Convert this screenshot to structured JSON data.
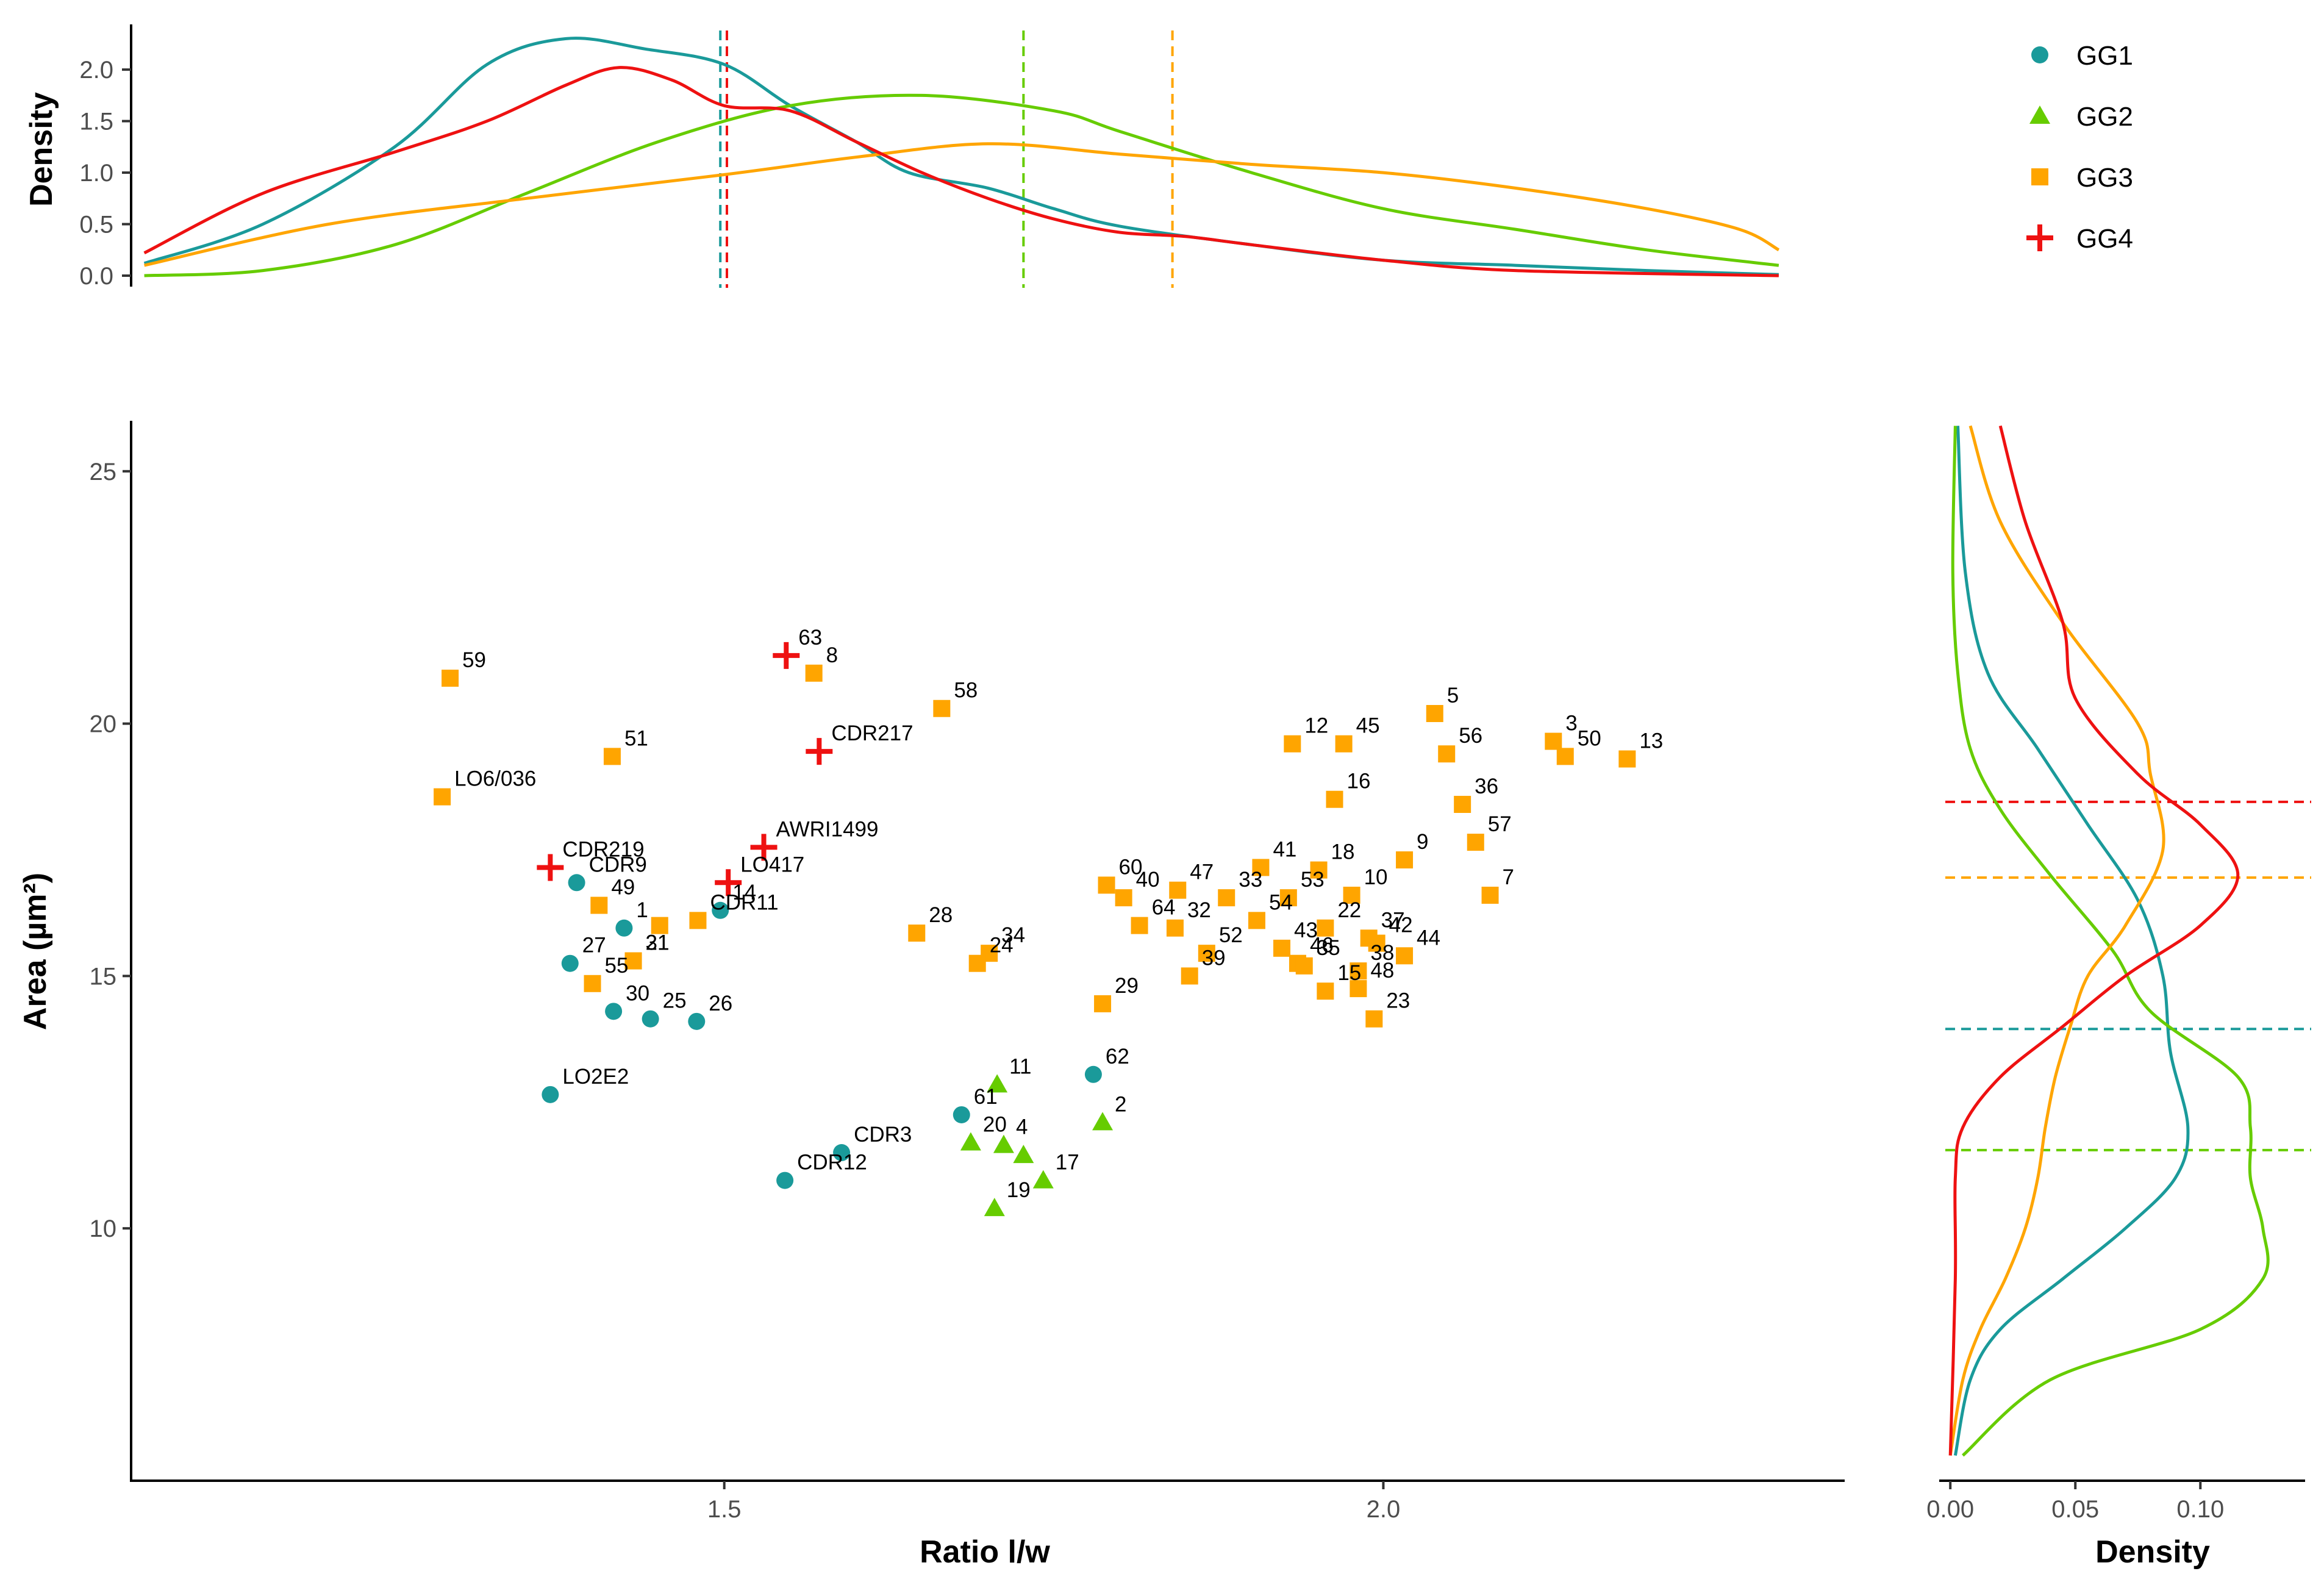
{
  "chart_data": {
    "type": "scatter",
    "title": "",
    "xlabel": "Ratio l/w",
    "ylabel": "Area (µm²)",
    "xlim": [
      1.05,
      2.35
    ],
    "ylim": [
      5,
      26
    ],
    "xticks": [
      "1.5",
      "2.0"
    ],
    "yticks": [
      "10",
      "15",
      "20",
      "25"
    ],
    "legend": {
      "position": "top-right",
      "entries": [
        {
          "group": "GG1",
          "label": "GG1",
          "color": "#1a9a9a",
          "shape": "circle"
        },
        {
          "group": "GG2",
          "label": "GG2",
          "color": "#66cc00",
          "shape": "triangle"
        },
        {
          "group": "GG3",
          "label": "GG3",
          "color": "#ffa500",
          "shape": "square"
        },
        {
          "group": "GG4",
          "label": "GG4",
          "color": "#ee1111",
          "shape": "cross"
        }
      ]
    },
    "series": [
      {
        "name": "GG1",
        "color": "#1a9a9a",
        "shape": "circle",
        "points": [
          {
            "label": "CDR9",
            "x": 1.388,
            "y": 16.85
          },
          {
            "label": "27",
            "x": 1.383,
            "y": 15.25
          },
          {
            "label": "1",
            "x": 1.424,
            "y": 15.95
          },
          {
            "label": "14",
            "x": 1.497,
            "y": 16.3
          },
          {
            "label": "30",
            "x": 1.416,
            "y": 14.3
          },
          {
            "label": "25",
            "x": 1.444,
            "y": 14.15
          },
          {
            "label": "26",
            "x": 1.479,
            "y": 14.1
          },
          {
            "label": "LO2E2",
            "x": 1.368,
            "y": 12.65
          },
          {
            "label": "CDR12",
            "x": 1.546,
            "y": 10.95
          },
          {
            "label": "CDR3",
            "x": 1.589,
            "y": 11.5
          },
          {
            "label": "61",
            "x": 1.68,
            "y": 12.25
          },
          {
            "label": "62",
            "x": 1.78,
            "y": 13.05
          }
        ]
      },
      {
        "name": "GG2",
        "color": "#66cc00",
        "shape": "triangle",
        "points": [
          {
            "label": "11",
            "x": 1.707,
            "y": 12.85
          },
          {
            "label": "20",
            "x": 1.687,
            "y": 11.7
          },
          {
            "label": "4",
            "x": 1.712,
            "y": 11.65
          },
          {
            "label": "",
            "x": 1.727,
            "y": 11.45
          },
          {
            "label": "2",
            "x": 1.787,
            "y": 12.1
          },
          {
            "label": "17",
            "x": 1.742,
            "y": 10.95
          },
          {
            "label": "19",
            "x": 1.705,
            "y": 10.4
          }
        ]
      },
      {
        "name": "GG3",
        "color": "#ffa500",
        "shape": "square",
        "points": [
          {
            "label": "59",
            "x": 1.292,
            "y": 20.9
          },
          {
            "label": "LO6/036",
            "x": 1.286,
            "y": 18.55
          },
          {
            "label": "51",
            "x": 1.415,
            "y": 19.35
          },
          {
            "label": "49",
            "x": 1.405,
            "y": 16.4
          },
          {
            "label": "",
            "x": 1.451,
            "y": 16.0
          },
          {
            "label": "CDR11",
            "x": 1.48,
            "y": 16.1
          },
          {
            "label": "31",
            "x": 1.431,
            "y": 15.3
          },
          {
            "label": "55",
            "x": 1.4,
            "y": 14.85
          },
          {
            "label": "21",
            "x": 1.431,
            "y": 15.3
          },
          {
            "label": "8",
            "x": 1.568,
            "y": 21.0
          },
          {
            "label": "58",
            "x": 1.665,
            "y": 20.3
          },
          {
            "label": "28",
            "x": 1.646,
            "y": 15.85
          },
          {
            "label": "34",
            "x": 1.701,
            "y": 15.45
          },
          {
            "label": "24",
            "x": 1.692,
            "y": 15.25
          },
          {
            "label": "29",
            "x": 1.787,
            "y": 14.45
          },
          {
            "label": "60",
            "x": 1.79,
            "y": 16.8
          },
          {
            "label": "40",
            "x": 1.803,
            "y": 16.55
          },
          {
            "label": "47",
            "x": 1.844,
            "y": 16.7
          },
          {
            "label": "33",
            "x": 1.881,
            "y": 16.55
          },
          {
            "label": "64",
            "x": 1.815,
            "y": 16.0
          },
          {
            "label": "32",
            "x": 1.842,
            "y": 15.95
          },
          {
            "label": "52",
            "x": 1.866,
            "y": 15.45
          },
          {
            "label": "39",
            "x": 1.853,
            "y": 15.0
          },
          {
            "label": "41",
            "x": 1.907,
            "y": 17.15
          },
          {
            "label": "53",
            "x": 1.928,
            "y": 16.55
          },
          {
            "label": "18",
            "x": 1.951,
            "y": 17.1
          },
          {
            "label": "10",
            "x": 1.976,
            "y": 16.6
          },
          {
            "label": "54",
            "x": 1.904,
            "y": 16.1
          },
          {
            "label": "22",
            "x": 1.956,
            "y": 15.95
          },
          {
            "label": "43",
            "x": 1.923,
            "y": 15.55
          },
          {
            "label": "46",
            "x": 1.935,
            "y": 15.25
          },
          {
            "label": "35",
            "x": 1.94,
            "y": 15.2
          },
          {
            "label": "37",
            "x": 1.989,
            "y": 15.75
          },
          {
            "label": "42",
            "x": 1.995,
            "y": 15.65
          },
          {
            "label": "38",
            "x": 1.981,
            "y": 15.1
          },
          {
            "label": "44",
            "x": 2.016,
            "y": 15.4
          },
          {
            "label": "48",
            "x": 1.981,
            "y": 14.75
          },
          {
            "label": "15",
            "x": 1.956,
            "y": 14.7
          },
          {
            "label": "23",
            "x": 1.993,
            "y": 14.15
          },
          {
            "label": "9",
            "x": 2.016,
            "y": 17.3
          },
          {
            "label": "12",
            "x": 1.931,
            "y": 19.6
          },
          {
            "label": "45",
            "x": 1.97,
            "y": 19.6
          },
          {
            "label": "16",
            "x": 1.963,
            "y": 18.5
          },
          {
            "label": "5",
            "x": 2.039,
            "y": 20.2
          },
          {
            "label": "56",
            "x": 2.048,
            "y": 19.4
          },
          {
            "label": "36",
            "x": 2.06,
            "y": 18.4
          },
          {
            "label": "57",
            "x": 2.07,
            "y": 17.65
          },
          {
            "label": "7",
            "x": 2.081,
            "y": 16.6
          },
          {
            "label": "3",
            "x": 2.129,
            "y": 19.65
          },
          {
            "label": "50",
            "x": 2.138,
            "y": 19.35
          },
          {
            "label": "13",
            "x": 2.185,
            "y": 19.3
          }
        ]
      },
      {
        "name": "GG4",
        "color": "#ee1111",
        "shape": "cross",
        "points": [
          {
            "label": "63",
            "x": 1.547,
            "y": 21.35
          },
          {
            "label": "CDR217",
            "x": 1.572,
            "y": 19.45
          },
          {
            "label": "AWRI1499",
            "x": 1.53,
            "y": 17.55
          },
          {
            "label": "CDR219",
            "x": 1.368,
            "y": 17.15
          },
          {
            "label": "LO417",
            "x": 1.503,
            "y": 16.85
          }
        ]
      }
    ],
    "top_density": {
      "ylabel": "Density",
      "yticks": [
        "0.0",
        "0.5",
        "1.0",
        "1.5",
        "2.0"
      ],
      "ylim": [
        0,
        2.35
      ],
      "series": [
        {
          "name": "GG1",
          "color": "#1a9a9a",
          "mean_x": 1.497,
          "points": [
            [
              1.06,
              0.12
            ],
            [
              1.15,
              0.5
            ],
            [
              1.25,
              1.25
            ],
            [
              1.32,
              2.05
            ],
            [
              1.38,
              2.3
            ],
            [
              1.44,
              2.2
            ],
            [
              1.5,
              2.05
            ],
            [
              1.55,
              1.65
            ],
            [
              1.6,
              1.3
            ],
            [
              1.64,
              1.0
            ],
            [
              1.7,
              0.85
            ],
            [
              1.75,
              0.65
            ],
            [
              1.8,
              0.48
            ],
            [
              1.9,
              0.3
            ],
            [
              2.0,
              0.15
            ],
            [
              2.1,
              0.1
            ],
            [
              2.2,
              0.05
            ],
            [
              2.3,
              0.01
            ]
          ]
        },
        {
          "name": "GG2",
          "color": "#66cc00",
          "mean_x": 1.727,
          "points": [
            [
              1.06,
              0.0
            ],
            [
              1.15,
              0.05
            ],
            [
              1.25,
              0.3
            ],
            [
              1.35,
              0.8
            ],
            [
              1.45,
              1.3
            ],
            [
              1.55,
              1.65
            ],
            [
              1.65,
              1.75
            ],
            [
              1.75,
              1.6
            ],
            [
              1.8,
              1.4
            ],
            [
              1.9,
              1.0
            ],
            [
              2.0,
              0.65
            ],
            [
              2.1,
              0.45
            ],
            [
              2.2,
              0.25
            ],
            [
              2.3,
              0.1
            ]
          ]
        },
        {
          "name": "GG3",
          "color": "#ffa500",
          "mean_x": 1.84,
          "points": [
            [
              1.06,
              0.1
            ],
            [
              1.2,
              0.5
            ],
            [
              1.35,
              0.75
            ],
            [
              1.5,
              0.98
            ],
            [
              1.6,
              1.15
            ],
            [
              1.7,
              1.28
            ],
            [
              1.8,
              1.18
            ],
            [
              1.9,
              1.08
            ],
            [
              2.0,
              1.0
            ],
            [
              2.1,
              0.85
            ],
            [
              2.2,
              0.65
            ],
            [
              2.27,
              0.45
            ],
            [
              2.3,
              0.25
            ]
          ]
        },
        {
          "name": "GG4",
          "color": "#ee1111",
          "mean_x": 1.502,
          "points": [
            [
              1.06,
              0.22
            ],
            [
              1.15,
              0.8
            ],
            [
              1.25,
              1.2
            ],
            [
              1.32,
              1.5
            ],
            [
              1.38,
              1.85
            ],
            [
              1.42,
              2.02
            ],
            [
              1.46,
              1.9
            ],
            [
              1.5,
              1.65
            ],
            [
              1.55,
              1.6
            ],
            [
              1.6,
              1.3
            ],
            [
              1.65,
              1.0
            ],
            [
              1.7,
              0.75
            ],
            [
              1.75,
              0.55
            ],
            [
              1.8,
              0.42
            ],
            [
              1.85,
              0.38
            ],
            [
              1.9,
              0.3
            ],
            [
              2.0,
              0.15
            ],
            [
              2.1,
              0.05
            ],
            [
              2.3,
              0.0
            ]
          ]
        }
      ]
    },
    "right_density": {
      "xlabel": "Density",
      "xticks": [
        "0.00",
        "0.05",
        "0.10"
      ],
      "xlim": [
        -0.002,
        0.137
      ],
      "series": [
        {
          "name": "GG1",
          "color": "#1a9a9a",
          "mean_y": 13.95,
          "points": [
            [
              25.9,
              0.003
            ],
            [
              23,
              0.006
            ],
            [
              21,
              0.015
            ],
            [
              19.5,
              0.035
            ],
            [
              18,
              0.055
            ],
            [
              16.5,
              0.075
            ],
            [
              15,
              0.085
            ],
            [
              13.5,
              0.088
            ],
            [
              12,
              0.095
            ],
            [
              11,
              0.09
            ],
            [
              10,
              0.07
            ],
            [
              9,
              0.045
            ],
            [
              8,
              0.02
            ],
            [
              7,
              0.008
            ],
            [
              5.5,
              0.002
            ]
          ]
        },
        {
          "name": "GG2",
          "color": "#66cc00",
          "mean_y": 11.55,
          "points": [
            [
              25.9,
              0.002
            ],
            [
              23,
              0.001
            ],
            [
              21,
              0.003
            ],
            [
              19.5,
              0.008
            ],
            [
              18.3,
              0.02
            ],
            [
              17,
              0.04
            ],
            [
              15.5,
              0.065
            ],
            [
              14.3,
              0.08
            ],
            [
              13,
              0.115
            ],
            [
              12,
              0.12
            ],
            [
              11,
              0.12
            ],
            [
              10,
              0.125
            ],
            [
              9,
              0.125
            ],
            [
              8,
              0.1
            ],
            [
              7,
              0.04
            ],
            [
              5.5,
              0.005
            ]
          ]
        },
        {
          "name": "GG3",
          "color": "#ffa500",
          "mean_y": 16.95,
          "points": [
            [
              25.9,
              0.008
            ],
            [
              24,
              0.02
            ],
            [
              22,
              0.045
            ],
            [
              20,
              0.075
            ],
            [
              19,
              0.08
            ],
            [
              17.5,
              0.085
            ],
            [
              16,
              0.07
            ],
            [
              15,
              0.055
            ],
            [
              14,
              0.048
            ],
            [
              13,
              0.042
            ],
            [
              12,
              0.038
            ],
            [
              11,
              0.035
            ],
            [
              10,
              0.03
            ],
            [
              9,
              0.022
            ],
            [
              8,
              0.012
            ],
            [
              7,
              0.005
            ],
            [
              5.5,
              0.0
            ]
          ]
        },
        {
          "name": "GG4",
          "color": "#ee1111",
          "mean_y": 18.45,
          "points": [
            [
              25.9,
              0.02
            ],
            [
              24,
              0.03
            ],
            [
              22,
              0.045
            ],
            [
              20.5,
              0.05
            ],
            [
              19,
              0.075
            ],
            [
              18,
              0.1
            ],
            [
              17,
              0.115
            ],
            [
              16,
              0.1
            ],
            [
              15,
              0.07
            ],
            [
              14,
              0.045
            ],
            [
              13,
              0.02
            ],
            [
              12,
              0.005
            ],
            [
              11,
              0.002
            ],
            [
              9,
              0.002
            ],
            [
              5.5,
              0.0
            ]
          ]
        }
      ]
    }
  }
}
